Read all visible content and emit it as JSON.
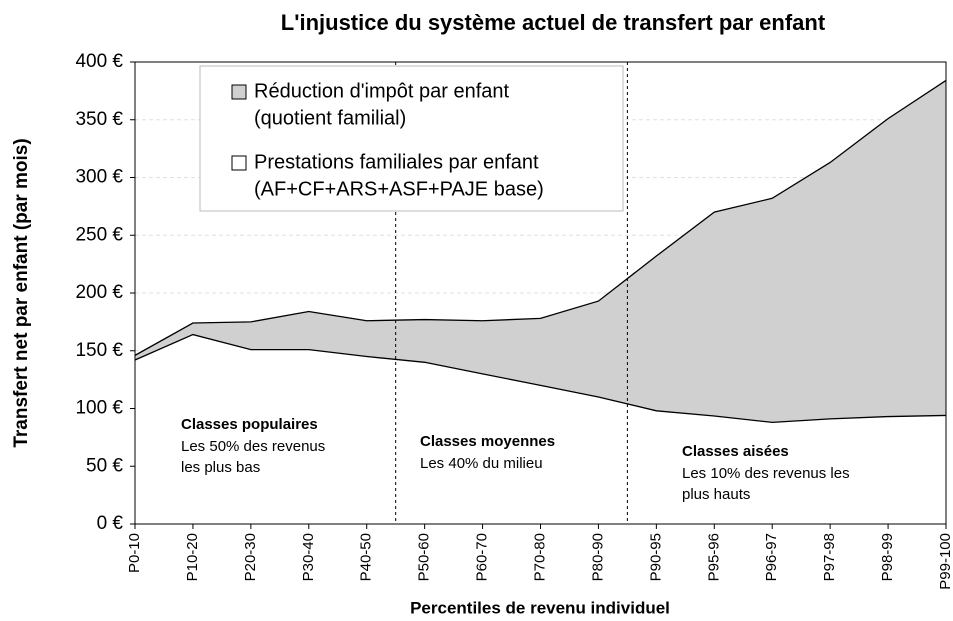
{
  "chart_data": {
    "type": "stacked_area",
    "title": "L'injustice du système actuel de transfert par enfant",
    "x_label": "Percentiles de revenu individuel",
    "y_label": "Transfert net par enfant (par mois)",
    "categories": [
      "P0-10",
      "P10-20",
      "P20-30",
      "P30-40",
      "P40-50",
      "P50-60",
      "P60-70",
      "P70-80",
      "P80-90",
      "P90-95",
      "P95-96",
      "P96-97",
      "P97-98",
      "P98-99",
      "P99-100"
    ],
    "series": [
      {
        "name": "Réduction d'impôt par enfant (quotient familial)",
        "color": "#d0d0d0",
        "values": [
          4,
          10,
          24,
          33,
          31,
          37,
          46,
          58,
          83,
          134,
          176.5,
          194,
          222,
          258,
          290
        ]
      },
      {
        "name": "Prestations familiales par enfant (AF+CF+ARS+ASF+PAJE base)",
        "color": "#ffffff",
        "values": [
          142,
          164,
          151,
          151,
          145,
          140,
          130,
          120,
          110,
          98,
          93.5,
          88,
          91,
          93,
          94
        ]
      }
    ],
    "legend_lines": [
      [
        "Réduction d'impôt par enfant",
        "(quotient familial)"
      ],
      [
        "Prestations familiales par enfant",
        "(AF+CF+ARS+ASF+PAJE base)"
      ]
    ],
    "annotations": [
      {
        "title": "Classes populaires",
        "lines": [
          "Les 50% des revenus",
          "les plus bas"
        ]
      },
      {
        "title": "Classes moyennes",
        "lines": [
          "Les 40% du milieu"
        ]
      },
      {
        "title": "Classes aisées",
        "lines": [
          "Les 10% des revenus les",
          "plus hauts"
        ]
      }
    ],
    "ylim": [
      0,
      400
    ],
    "yticks": [
      {
        "value": 0,
        "label": "0 €"
      },
      {
        "value": 50,
        "label": "50 €"
      },
      {
        "value": 100,
        "label": "100 €"
      },
      {
        "value": 150,
        "label": "150 €"
      },
      {
        "value": 200,
        "label": "200 €"
      },
      {
        "value": 250,
        "label": "250 €"
      },
      {
        "value": 300,
        "label": "300 €"
      },
      {
        "value": 350,
        "label": "350 €"
      },
      {
        "value": 400,
        "label": "400 €"
      }
    ],
    "grid": true,
    "legend": "top-left"
  }
}
